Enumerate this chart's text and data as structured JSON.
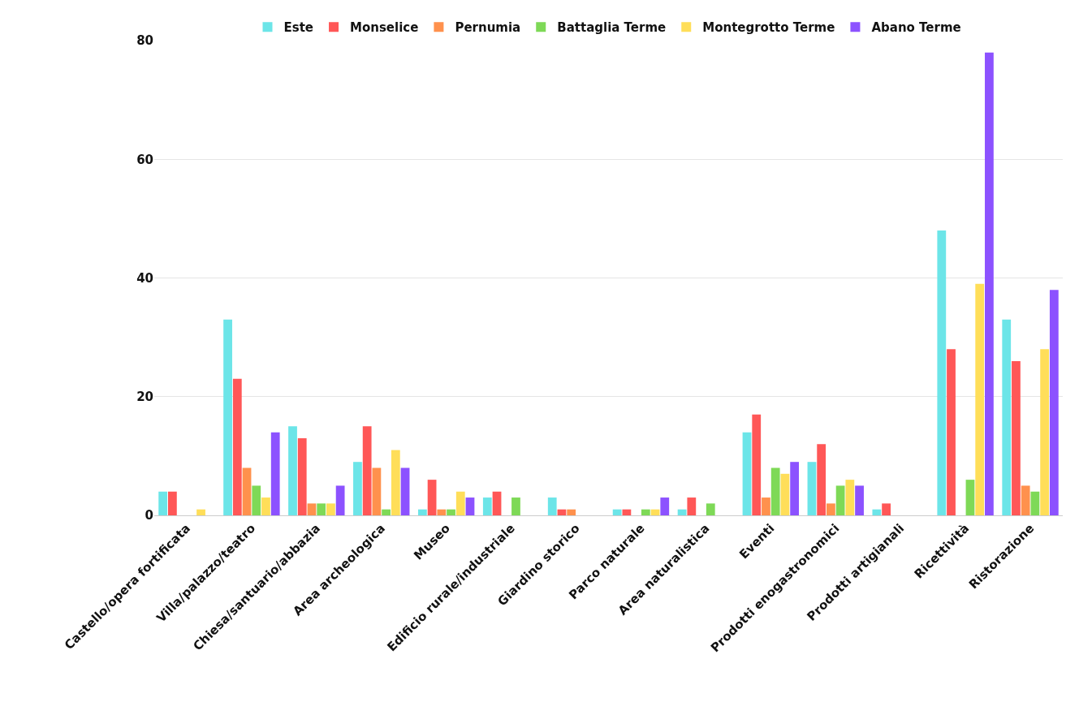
{
  "chart_data": {
    "type": "bar",
    "categories": [
      "Castello/opera fortificata",
      "Villa/palazzo/teatro",
      "Chiesa/santuario/abbazia",
      "Area archeologica",
      "Museo",
      "Edificio rurale/industriale",
      "Giardino storico",
      "Parco naturale",
      "Area naturalistica",
      "Eventi",
      "Prodotti enogastronomici",
      "Prodotti artigianali",
      "Ricettività",
      "Ristorazione"
    ],
    "series": [
      {
        "name": "Este",
        "color": "#6ce5e8",
        "values": [
          4,
          33,
          15,
          9,
          1,
          3,
          3,
          1,
          1,
          14,
          9,
          1,
          48,
          33
        ]
      },
      {
        "name": "Monselice",
        "color": "#ff5757",
        "values": [
          4,
          23,
          13,
          15,
          6,
          4,
          1,
          1,
          3,
          17,
          12,
          2,
          28,
          26
        ]
      },
      {
        "name": "Pernumia",
        "color": "#ff914d",
        "values": [
          0,
          8,
          2,
          8,
          1,
          0,
          1,
          0,
          0,
          3,
          2,
          0,
          0,
          5
        ]
      },
      {
        "name": "Battaglia Terme",
        "color": "#7ed957",
        "values": [
          0,
          5,
          2,
          1,
          1,
          3,
          0,
          1,
          2,
          8,
          5,
          0,
          6,
          4
        ]
      },
      {
        "name": "Montegrotto Terme",
        "color": "#ffde59",
        "values": [
          1,
          3,
          2,
          11,
          4,
          0,
          0,
          1,
          0,
          7,
          6,
          0,
          39,
          28
        ]
      },
      {
        "name": "Abano Terme",
        "color": "#8c52ff",
        "values": [
          0,
          14,
          5,
          8,
          3,
          0,
          0,
          3,
          0,
          9,
          5,
          0,
          78,
          38
        ]
      }
    ],
    "ylim": [
      0,
      80
    ],
    "yticks": [
      0,
      20,
      40,
      60,
      80
    ],
    "grid": "y",
    "legend": "top"
  }
}
